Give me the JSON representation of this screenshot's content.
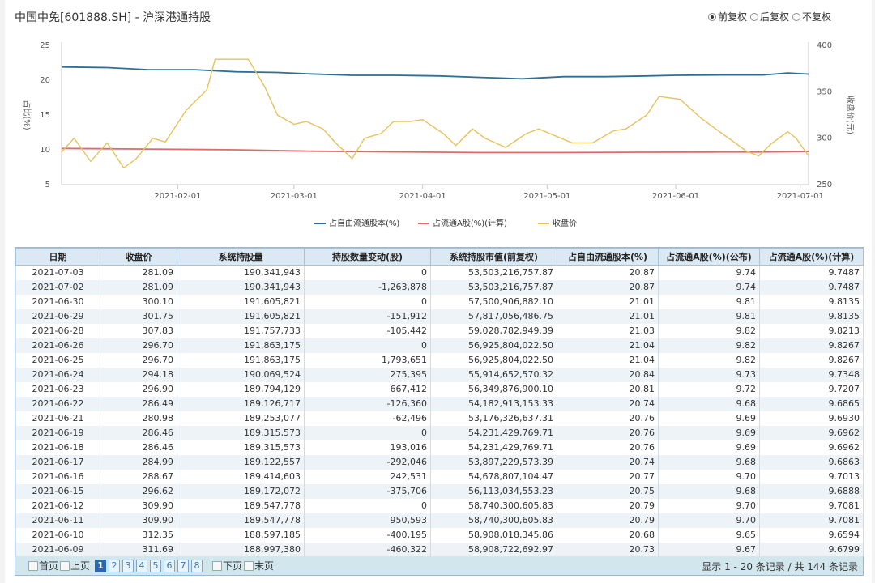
{
  "header": {
    "title": "中国中免[601888.SH] - 沪深港通持股",
    "adjust_options": [
      {
        "label": "前复权",
        "selected": true
      },
      {
        "label": "后复权",
        "selected": false
      },
      {
        "label": "不复权",
        "selected": false
      }
    ]
  },
  "chart_data": {
    "type": "line",
    "x_ticks": [
      "2021-02-01",
      "2021-03-01",
      "2021-04-01",
      "2021-05-01",
      "2021-06-01",
      "2021-07-01"
    ],
    "x_range": [
      "2021-01-04",
      "2021-07-03"
    ],
    "y_left": {
      "label": "占比(%)",
      "ticks": [
        25,
        20,
        15,
        10,
        5
      ],
      "range": [
        5,
        25
      ]
    },
    "y_right": {
      "label": "收盘价(元)",
      "ticks": [
        400,
        350,
        300,
        250
      ],
      "range": [
        250,
        400
      ]
    },
    "grid": false,
    "legend_position": "bottom",
    "series": [
      {
        "name": "占自由流通股本(%)",
        "axis": "left",
        "color": "#2f6f95",
        "x": [
          "2021-01-04",
          "2021-01-15",
          "2021-01-25",
          "2021-02-05",
          "2021-02-15",
          "2021-02-25",
          "2021-03-05",
          "2021-03-15",
          "2021-03-25",
          "2021-04-05",
          "2021-04-15",
          "2021-04-25",
          "2021-05-05",
          "2021-05-15",
          "2021-05-25",
          "2021-06-01",
          "2021-06-09",
          "2021-06-15",
          "2021-06-22",
          "2021-06-28",
          "2021-07-03"
        ],
        "values": [
          21.9,
          21.8,
          21.5,
          21.5,
          21.2,
          21.1,
          20.9,
          20.7,
          20.7,
          20.6,
          20.4,
          20.2,
          20.5,
          20.5,
          20.6,
          20.7,
          20.73,
          20.75,
          20.74,
          21.03,
          20.87
        ]
      },
      {
        "name": "占流通A股(%)(计算)",
        "axis": "left",
        "color": "#e06b6b",
        "x": [
          "2021-01-04",
          "2021-01-25",
          "2021-02-15",
          "2021-03-05",
          "2021-03-25",
          "2021-04-15",
          "2021-05-05",
          "2021-05-25",
          "2021-06-09",
          "2021-06-22",
          "2021-07-03"
        ],
        "values": [
          10.2,
          10.1,
          10.0,
          9.8,
          9.7,
          9.6,
          9.6,
          9.65,
          9.68,
          9.69,
          9.75
        ]
      },
      {
        "name": "收盘价",
        "axis": "right",
        "color": "#e6c15c",
        "x": [
          "2021-01-04",
          "2021-01-07",
          "2021-01-11",
          "2021-01-15",
          "2021-01-19",
          "2021-01-22",
          "2021-01-26",
          "2021-01-29",
          "2021-02-03",
          "2021-02-08",
          "2021-02-10",
          "2021-02-18",
          "2021-02-22",
          "2021-02-25",
          "2021-03-01",
          "2021-03-04",
          "2021-03-08",
          "2021-03-11",
          "2021-03-15",
          "2021-03-18",
          "2021-03-22",
          "2021-03-25",
          "2021-03-29",
          "2021-04-01",
          "2021-04-06",
          "2021-04-09",
          "2021-04-13",
          "2021-04-16",
          "2021-04-21",
          "2021-04-26",
          "2021-04-29",
          "2021-05-07",
          "2021-05-12",
          "2021-05-17",
          "2021-05-20",
          "2021-05-25",
          "2021-05-28",
          "2021-06-02",
          "2021-06-07",
          "2021-06-10",
          "2021-06-15",
          "2021-06-18",
          "2021-06-21",
          "2021-06-24",
          "2021-06-28",
          "2021-06-30",
          "2021-07-03"
        ],
        "values": [
          285,
          300,
          275,
          295,
          268,
          278,
          300,
          296,
          330,
          352,
          385,
          385,
          355,
          325,
          315,
          318,
          310,
          295,
          278,
          300,
          305,
          318,
          318,
          320,
          305,
          292,
          310,
          300,
          290,
          305,
          310,
          295,
          295,
          308,
          310,
          325,
          345,
          342,
          322,
          312,
          296,
          286,
          281,
          294,
          307,
          300,
          281
        ]
      }
    ]
  },
  "table": {
    "columns": [
      "日期",
      "收盘价",
      "系统持股量",
      "持股数量变动(股)",
      "系统持股市值(前复权)",
      "占自由流通股本(%)",
      "占流通A股(%)(公布)",
      "占流通A股(%)(计算)"
    ],
    "rows": [
      [
        "2021-07-03",
        "281.09",
        "190,341,943",
        "0",
        "53,503,216,757.87",
        "20.87",
        "9.74",
        "9.7487"
      ],
      [
        "2021-07-02",
        "281.09",
        "190,341,943",
        "-1,263,878",
        "53,503,216,757.87",
        "20.87",
        "9.74",
        "9.7487"
      ],
      [
        "2021-06-30",
        "300.10",
        "191,605,821",
        "0",
        "57,500,906,882.10",
        "21.01",
        "9.81",
        "9.8135"
      ],
      [
        "2021-06-29",
        "301.75",
        "191,605,821",
        "-151,912",
        "57,817,056,486.75",
        "21.01",
        "9.81",
        "9.8135"
      ],
      [
        "2021-06-28",
        "307.83",
        "191,757,733",
        "-105,442",
        "59,028,782,949.39",
        "21.03",
        "9.82",
        "9.8213"
      ],
      [
        "2021-06-26",
        "296.70",
        "191,863,175",
        "0",
        "56,925,804,022.50",
        "21.04",
        "9.82",
        "9.8267"
      ],
      [
        "2021-06-25",
        "296.70",
        "191,863,175",
        "1,793,651",
        "56,925,804,022.50",
        "21.04",
        "9.82",
        "9.8267"
      ],
      [
        "2021-06-24",
        "294.18",
        "190,069,524",
        "275,395",
        "55,914,652,570.32",
        "20.84",
        "9.73",
        "9.7348"
      ],
      [
        "2021-06-23",
        "296.90",
        "189,794,129",
        "667,412",
        "56,349,876,900.10",
        "20.81",
        "9.72",
        "9.7207"
      ],
      [
        "2021-06-22",
        "286.49",
        "189,126,717",
        "-126,360",
        "54,182,913,153.33",
        "20.74",
        "9.68",
        "9.6865"
      ],
      [
        "2021-06-21",
        "280.98",
        "189,253,077",
        "-62,496",
        "53,176,326,637.31",
        "20.76",
        "9.69",
        "9.6930"
      ],
      [
        "2021-06-19",
        "286.46",
        "189,315,573",
        "0",
        "54,231,429,769.71",
        "20.76",
        "9.69",
        "9.6962"
      ],
      [
        "2021-06-18",
        "286.46",
        "189,315,573",
        "193,016",
        "54,231,429,769.71",
        "20.76",
        "9.69",
        "9.6962"
      ],
      [
        "2021-06-17",
        "284.99",
        "189,122,557",
        "-292,046",
        "53,897,229,573.39",
        "20.74",
        "9.68",
        "9.6863"
      ],
      [
        "2021-06-16",
        "288.67",
        "189,414,603",
        "242,531",
        "54,678,807,104.47",
        "20.77",
        "9.70",
        "9.7013"
      ],
      [
        "2021-06-15",
        "296.62",
        "189,172,072",
        "-375,706",
        "56,113,034,553.23",
        "20.75",
        "9.68",
        "9.6888"
      ],
      [
        "2021-06-12",
        "309.90",
        "189,547,778",
        "0",
        "58,740,300,605.83",
        "20.79",
        "9.70",
        "9.7081"
      ],
      [
        "2021-06-11",
        "309.90",
        "189,547,778",
        "950,593",
        "58,740,300,605.83",
        "20.79",
        "9.70",
        "9.7081"
      ],
      [
        "2021-06-10",
        "312.35",
        "188,597,185",
        "-400,195",
        "58,908,018,345.86",
        "20.68",
        "9.65",
        "9.6594"
      ],
      [
        "2021-06-09",
        "311.69",
        "188,997,380",
        "-460,322",
        "58,908,722,692.97",
        "20.73",
        "9.67",
        "9.6799"
      ]
    ]
  },
  "pager": {
    "first_label": "首页",
    "prev_label": "上页",
    "pages": [
      "1",
      "2",
      "3",
      "4",
      "5",
      "6",
      "7",
      "8"
    ],
    "current": "1",
    "next_label": "下页",
    "last_label": "末页",
    "summary": "显示 1 - 20 条记录 / 共 144 条记录"
  }
}
